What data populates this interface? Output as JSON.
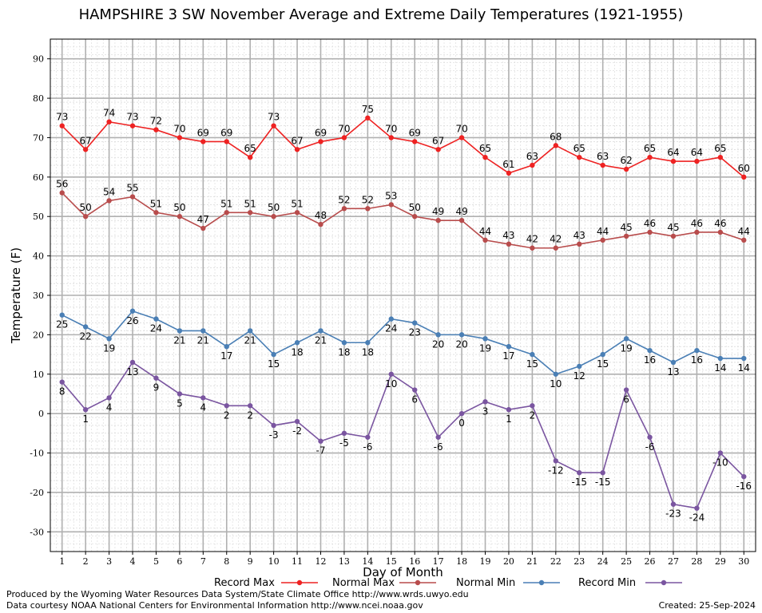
{
  "chart_data": {
    "type": "line",
    "title": "HAMPSHIRE 3 SW November Average and Extreme Daily Temperatures (1921-1955)",
    "xlabel": "Day of Month",
    "ylabel": "Temperature (F)",
    "x": [
      1,
      2,
      3,
      4,
      5,
      6,
      7,
      8,
      9,
      10,
      11,
      12,
      13,
      14,
      15,
      16,
      17,
      18,
      19,
      20,
      21,
      22,
      23,
      24,
      25,
      26,
      27,
      28,
      29,
      30
    ],
    "xlim": [
      0.5,
      30.5
    ],
    "ylim": [
      -35,
      95
    ],
    "yticks": [
      -30,
      -20,
      -10,
      0,
      10,
      20,
      30,
      40,
      50,
      60,
      70,
      80,
      90
    ],
    "grid": true,
    "legend_position": "bottom",
    "series": [
      {
        "name": "Record Max",
        "color": "#ee2222",
        "label_position": "above",
        "values": [
          73,
          67,
          74,
          73,
          72,
          70,
          69,
          69,
          65,
          73,
          67,
          69,
          70,
          75,
          70,
          69,
          67,
          70,
          65,
          61,
          63,
          68,
          65,
          63,
          62,
          65,
          64,
          64,
          65,
          60
        ]
      },
      {
        "name": "Normal Max",
        "color": "#b84c4c",
        "label_position": "above",
        "values": [
          56,
          50,
          54,
          55,
          51,
          50,
          47,
          51,
          51,
          50,
          51,
          48,
          52,
          52,
          53,
          50,
          49,
          49,
          44,
          43,
          42,
          42,
          43,
          44,
          45,
          46,
          45,
          46,
          46,
          44
        ]
      },
      {
        "name": "Normal Min",
        "color": "#4a7fb5",
        "label_position": "below",
        "values": [
          25,
          22,
          19,
          26,
          24,
          21,
          21,
          17,
          21,
          15,
          18,
          21,
          18,
          18,
          24,
          23,
          20,
          20,
          19,
          17,
          15,
          10,
          12,
          15,
          19,
          16,
          13,
          16,
          14,
          14
        ]
      },
      {
        "name": "Record Min",
        "color": "#7a55a0",
        "label_position": "below",
        "values": [
          8,
          1,
          4,
          13,
          9,
          5,
          4,
          2,
          2,
          -3,
          -2,
          -7,
          -5,
          -6,
          10,
          6,
          -6,
          0,
          3,
          1,
          2,
          -12,
          -15,
          -15,
          6,
          -6,
          -23,
          -24,
          -10,
          -16
        ]
      }
    ]
  },
  "footer": {
    "line1": "Produced by the Wyoming Water Resources Data System/State Climate Office http://www.wrds.uwyo.edu",
    "line2": "Data courtesy NOAA National Centers for Environmental Information http://www.ncei.noaa.gov",
    "created": "Created:  25-Sep-2024"
  }
}
